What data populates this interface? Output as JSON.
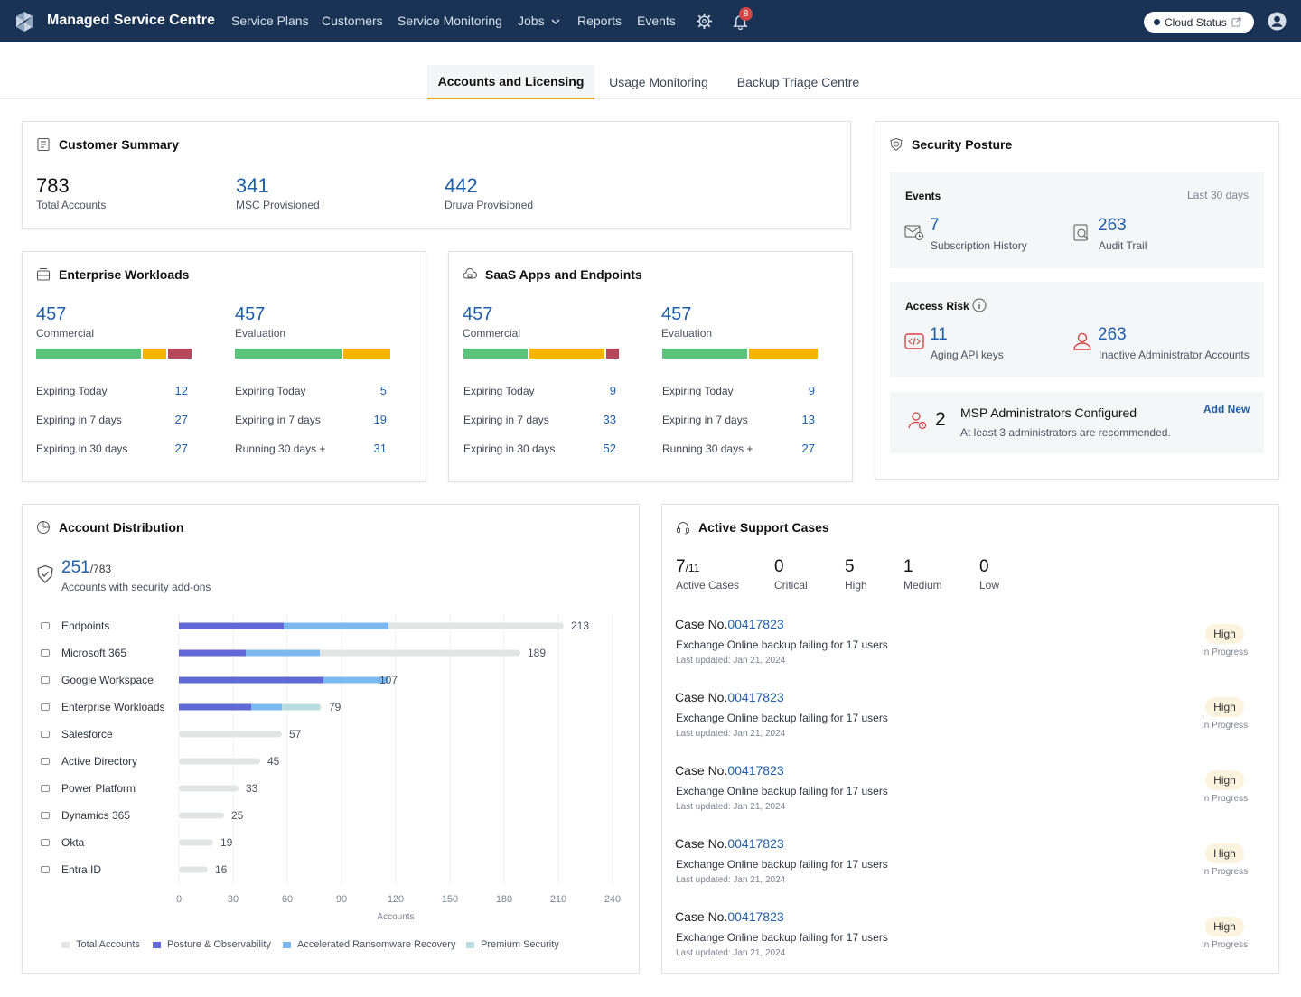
{
  "header": {
    "brand": "Managed Service Centre",
    "nav": [
      "Service Plans",
      "Customers",
      "Service Monitoring",
      "Jobs",
      "Reports",
      "Events"
    ],
    "notification_count": "8",
    "cloud_status": "Cloud Status"
  },
  "tabs": [
    "Accounts and Licensing",
    "Usage Monitoring",
    "Backup Triage Centre"
  ],
  "customer_summary": {
    "title": "Customer Summary",
    "stats": [
      {
        "value": "783",
        "label": "Total Accounts"
      },
      {
        "value": "341",
        "label": "MSC Provisioned"
      },
      {
        "value": "442",
        "label": "Druva Provisioned"
      }
    ]
  },
  "enterprise": {
    "title": "Enterprise Workloads",
    "commercial": {
      "value": "457",
      "label": "Commercial",
      "bar": [
        {
          "w": 0.68,
          "c": "#5cc47a"
        },
        {
          "w": 0.16,
          "c": "#f4b400"
        },
        {
          "w": 0.16,
          "c": "#b5485a"
        }
      ],
      "rows": [
        {
          "label": "Expiring Today",
          "value": "12"
        },
        {
          "label": "Expiring in 7 days",
          "value": "27"
        },
        {
          "label": "Expiring in 30 days",
          "value": "27"
        }
      ]
    },
    "evaluation": {
      "value": "457",
      "label": "Evaluation",
      "bar": [
        {
          "w": 0.69,
          "c": "#5cc47a"
        },
        {
          "w": 0.31,
          "c": "#f4b400"
        }
      ],
      "rows": [
        {
          "label": "Expiring Today",
          "value": "5"
        },
        {
          "label": "Expiring in 7 days",
          "value": "19"
        },
        {
          "label": "Running 30 days +",
          "value": "31"
        }
      ]
    }
  },
  "saas": {
    "title": "SaaS Apps and Endpoints",
    "commercial": {
      "value": "457",
      "label": "Commercial",
      "bar": [
        {
          "w": 0.42,
          "c": "#5cc47a"
        },
        {
          "w": 0.49,
          "c": "#f4b400"
        },
        {
          "w": 0.09,
          "c": "#b5485a"
        }
      ],
      "rows": [
        {
          "label": "Expiring Today",
          "value": "9"
        },
        {
          "label": "Expiring in 7 days",
          "value": "33"
        },
        {
          "label": "Expiring in 30 days",
          "value": "52"
        }
      ]
    },
    "evaluation": {
      "value": "457",
      "label": "Evaluation",
      "bar": [
        {
          "w": 0.55,
          "c": "#5cc47a"
        },
        {
          "w": 0.45,
          "c": "#f4b400"
        }
      ],
      "rows": [
        {
          "label": "Expiring Today",
          "value": "9"
        },
        {
          "label": "Expiring in 7 days",
          "value": "13"
        },
        {
          "label": "Running 30 days +",
          "value": "27"
        }
      ]
    }
  },
  "security": {
    "title": "Security Posture",
    "events_label": "Events",
    "events_period": "Last 30 days",
    "subscription_value": "7",
    "subscription_label": "Subscription History",
    "audit_value": "263",
    "audit_label": "Audit Trail",
    "access_label": "Access Risk",
    "api_value": "11",
    "api_label": "Aging API keys",
    "inactive_value": "263",
    "inactive_label": "Inactive Administrator Accounts",
    "msp_value": "2",
    "msp_title": "MSP Administrators Configured",
    "msp_sub": "At least 3 administrators are recommended.",
    "add_new": "Add New"
  },
  "distribution": {
    "title": "Account Distribution",
    "secure_value": "251",
    "secure_total": "/783",
    "secure_label": "Accounts with security add-ons"
  },
  "chart_data": {
    "type": "bar",
    "orientation": "horizontal",
    "categories": [
      "Endpoints",
      "Microsoft 365",
      "Google Workspace",
      "Enterprise Workloads",
      "Salesforce",
      "Active Directory",
      "Power Platform",
      "Dynamics 365",
      "Okta",
      "Entra ID"
    ],
    "series": [
      {
        "name": "Total Accounts",
        "color": "#e3e4e6",
        "values": [
          213,
          189,
          107,
          79,
          57,
          45,
          33,
          25,
          19,
          16
        ]
      },
      {
        "name": "Posture & Observability",
        "color": "#6169d6",
        "values": [
          58,
          37,
          80,
          40,
          0,
          0,
          0,
          0,
          0,
          0
        ]
      },
      {
        "name": "Accelerated Ransomware Recovery",
        "color": "#7ab8f0",
        "values": [
          58,
          41,
          36,
          17,
          0,
          0,
          0,
          0,
          0,
          0
        ]
      },
      {
        "name": "Premium Security",
        "color": "#b9dde0",
        "values": [
          0,
          0,
          0,
          21,
          0,
          0,
          0,
          0,
          0,
          0
        ]
      }
    ],
    "xlabel": "Accounts",
    "xticks": [
      "0",
      "30",
      "60",
      "90",
      "120",
      "150",
      "180",
      "210",
      "240"
    ],
    "xlim": [
      0,
      240
    ],
    "icons": [
      "laptop-icon",
      "grid-icon",
      "google-icon",
      "server-icon",
      "cloud-icon",
      "directory-icon",
      "flow-icon",
      "dynamics-icon",
      "okta-icon",
      "entra-icon"
    ]
  },
  "support": {
    "title": "Active Support Cases",
    "stats": [
      {
        "value": "7",
        "sub": "/11",
        "label": "Active Cases"
      },
      {
        "value": "0",
        "sub": "",
        "label": "Critical"
      },
      {
        "value": "5",
        "sub": "",
        "label": "High"
      },
      {
        "value": "1",
        "sub": "",
        "label": "Medium"
      },
      {
        "value": "0",
        "sub": "",
        "label": "Low"
      }
    ],
    "cases": [
      {
        "prefix": "Case No.",
        "no": "00417823",
        "desc": "Exchange Online backup failing for 17 users",
        "updated": "Last updated: Jan 21, 2024",
        "priority": "High",
        "status": "In Progress"
      },
      {
        "prefix": "Case No.",
        "no": "00417823",
        "desc": "Exchange Online backup failing for 17 users",
        "updated": "Last updated: Jan 21, 2024",
        "priority": "High",
        "status": "In Progress"
      },
      {
        "prefix": "Case No.",
        "no": "00417823",
        "desc": "Exchange Online backup failing for 17 users",
        "updated": "Last updated: Jan 21, 2024",
        "priority": "High",
        "status": "In Progress"
      },
      {
        "prefix": "Case No.",
        "no": "00417823",
        "desc": "Exchange Online backup failing for 17 users",
        "updated": "Last updated: Jan 21, 2024",
        "priority": "High",
        "status": "In Progress"
      },
      {
        "prefix": "Case No.",
        "no": "00417823",
        "desc": "Exchange Online backup failing for 17 users",
        "updated": "Last updated: Jan 21, 2024",
        "priority": "High",
        "status": "In Progress"
      }
    ]
  }
}
